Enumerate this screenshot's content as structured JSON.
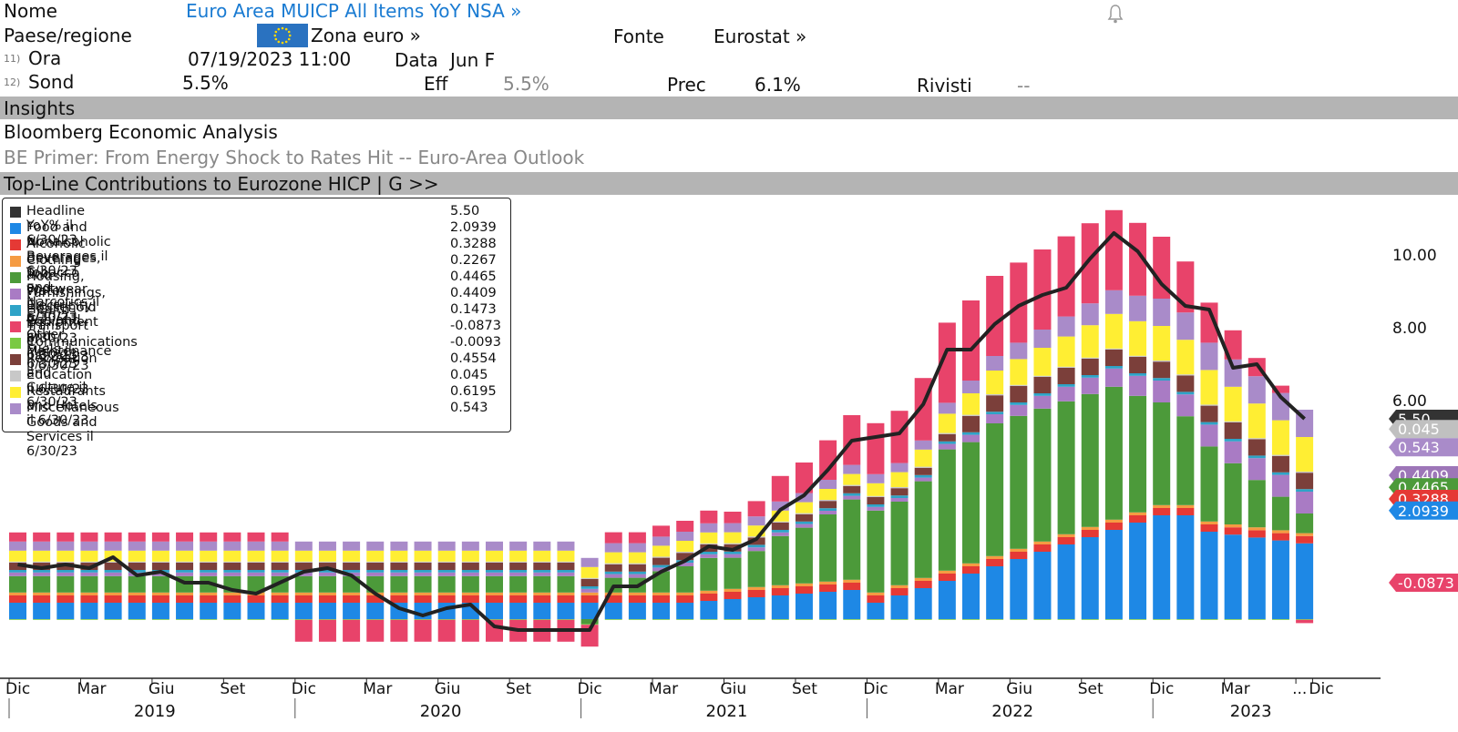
{
  "header": {
    "nome_label": "Nome",
    "nome_value": "Euro Area MUICP All Items YoY NSA »",
    "paese_label": "Paese/regione",
    "paese_value": "Zona euro »",
    "fonte_label": "Fonte",
    "fonte_value": "Eurostat »",
    "ora_num": "11)",
    "ora_label": "Ora",
    "ora_value": "07/19/2023 11:00",
    "data_label": "Data",
    "data_value": "Jun F",
    "sond_num": "12)",
    "sond_label": "Sond",
    "sond_value": "5.5%",
    "eff_label": "Eff",
    "eff_value": "5.5%",
    "prec_label": "Prec",
    "prec_value": "6.1%",
    "rivisti_label": "Rivisti",
    "rivisti_value": "--"
  },
  "insights": {
    "band_label": "Insights",
    "analysis": "Bloomberg Economic Analysis",
    "primer": "BE Primer: From Energy Shock to Rates Hit -- Euro-Area Outlook"
  },
  "chart_band": "Top-Line Contributions to Eurozone HICP   | G >>",
  "chart_data": {
    "type": "bar",
    "title": "Top-Line Contributions to Eurozone HICP",
    "stacked": true,
    "ylim": [
      -3,
      11
    ],
    "yticks": [
      "6.00",
      "8.00",
      "10.00"
    ],
    "x": [
      "2018-12",
      "2019-01",
      "2019-02",
      "2019-03",
      "2019-04",
      "2019-05",
      "2019-06",
      "2019-07",
      "2019-08",
      "2019-09",
      "2019-10",
      "2019-11",
      "2019-12",
      "2020-01",
      "2020-02",
      "2020-03",
      "2020-04",
      "2020-05",
      "2020-06",
      "2020-07",
      "2020-08",
      "2020-09",
      "2020-10",
      "2020-11",
      "2020-12",
      "2021-01",
      "2021-02",
      "2021-03",
      "2021-04",
      "2021-05",
      "2021-06",
      "2021-07",
      "2021-08",
      "2021-09",
      "2021-10",
      "2021-11",
      "2021-12",
      "2022-01",
      "2022-02",
      "2022-03",
      "2022-04",
      "2022-05",
      "2022-06",
      "2022-07",
      "2022-08",
      "2022-09",
      "2022-10",
      "2022-11",
      "2022-12",
      "2023-01",
      "2023-02",
      "2023-03",
      "2023-04",
      "2023-05",
      "2023-06"
    ],
    "x_tick_labels": [
      {
        "label": "Dic",
        "i": 0
      },
      {
        "label": "Mar",
        "i": 3
      },
      {
        "label": "Giu",
        "i": 6
      },
      {
        "label": "Set",
        "i": 9
      },
      {
        "label": "Dic",
        "i": 12
      },
      {
        "label": "Mar",
        "i": 15
      },
      {
        "label": "Giu",
        "i": 18
      },
      {
        "label": "Set",
        "i": 21
      },
      {
        "label": "Dic",
        "i": 24
      },
      {
        "label": "Mar",
        "i": 27
      },
      {
        "label": "Giu",
        "i": 30
      },
      {
        "label": "Set",
        "i": 33
      },
      {
        "label": "Dic",
        "i": 36
      },
      {
        "label": "Mar",
        "i": 39
      },
      {
        "label": "Giu",
        "i": 42
      },
      {
        "label": "Set",
        "i": 45
      },
      {
        "label": "Dic",
        "i": 48
      },
      {
        "label": "Mar",
        "i": 51
      },
      {
        "label": "...",
        "i": 54
      },
      {
        "label": "Dic",
        "i": 54.7
      }
    ],
    "years": [
      {
        "label": "2019",
        "from": 0,
        "to": 12
      },
      {
        "label": "2020",
        "from": 12,
        "to": 24
      },
      {
        "label": "2021",
        "from": 24,
        "to": 36
      },
      {
        "label": "2022",
        "from": 36,
        "to": 48
      },
      {
        "label": "2023",
        "from": 48,
        "to": 56
      }
    ],
    "headline": [
      1.5,
      1.4,
      1.5,
      1.4,
      1.7,
      1.2,
      1.3,
      1.0,
      1.0,
      0.8,
      0.7,
      1.0,
      1.3,
      1.4,
      1.2,
      0.7,
      0.3,
      0.1,
      0.3,
      0.4,
      -0.2,
      -0.3,
      -0.3,
      -0.3,
      -0.3,
      0.9,
      0.9,
      1.3,
      1.6,
      2.0,
      1.9,
      2.2,
      3.0,
      3.4,
      4.1,
      4.9,
      5.0,
      5.1,
      5.9,
      7.4,
      7.4,
      8.1,
      8.6,
      8.9,
      9.1,
      9.9,
      10.6,
      10.1,
      9.2,
      8.6,
      8.5,
      6.9,
      7.0,
      6.1,
      5.5
    ],
    "legend": [
      {
        "name": "Headline YoY% il 6/30/23",
        "value": "5.50",
        "color": "#333333"
      },
      {
        "name": "Food and Nonalcoholic Beverages il 6/30/23",
        "value": "2.0939",
        "color": "#1e88e5"
      },
      {
        "name": "Alcoholic Beverages, Tobacco and Narcotics il 6/30/23",
        "value": "0.3288",
        "color": "#e53935"
      },
      {
        "name": "Clothing and Footwear il 6/30/23",
        "value": "0.2267",
        "color": "#f59b42"
      },
      {
        "name": "Housing, Water, Electricity, Gas and Other Fuels il 6/30/23",
        "value": "0.4465",
        "color": "#4c9a3a"
      },
      {
        "name": "Furnishings, Household Equipment and Maintenance il 6/30/23",
        "value": "0.4409",
        "color": "#a97bc4"
      },
      {
        "name": "Health il 6/30/23",
        "value": "0.1473",
        "color": "#2ea3c7"
      },
      {
        "name": "Transport il 6/30/23",
        "value": "-0.0873",
        "color": "#e8436a"
      },
      {
        "name": "Communications il 6/30/23",
        "value": "-0.0093",
        "color": "#7ac943"
      },
      {
        "name": "Recreation and Culture il 6/30/23",
        "value": "0.4554",
        "color": "#7b3f3a"
      },
      {
        "name": "Education il 6/30/23",
        "value": "0.045",
        "color": "#c8c8c8"
      },
      {
        "name": "Restaurants and Hotels il 6/30/23",
        "value": "0.6195",
        "color": "#ffee33"
      },
      {
        "name": "Miscellaneous Goods and Services il 6/30/23",
        "value": "0.543",
        "color": "#a98bc9"
      }
    ],
    "value_tags": [
      {
        "text": "5.50",
        "color": "#333333",
        "y": 5.5
      },
      {
        "text": "0.045",
        "color": "#c0c0c0",
        "y": 5.22
      },
      {
        "text": "0.543",
        "color": "#a98bc9",
        "y": 4.72
      },
      {
        "text": "0.4409",
        "color": "#9d76b8",
        "y": 3.95
      },
      {
        "text": "0.4465",
        "color": "#4c9a3a",
        "y": 3.62
      },
      {
        "text": "0.3288",
        "color": "#e53935",
        "y": 3.3
      },
      {
        "text": "2.0939",
        "color": "#1e88e5",
        "y": 2.98
      },
      {
        "text": "-0.0873",
        "color": "#e8436a",
        "y": 1.0
      }
    ]
  }
}
